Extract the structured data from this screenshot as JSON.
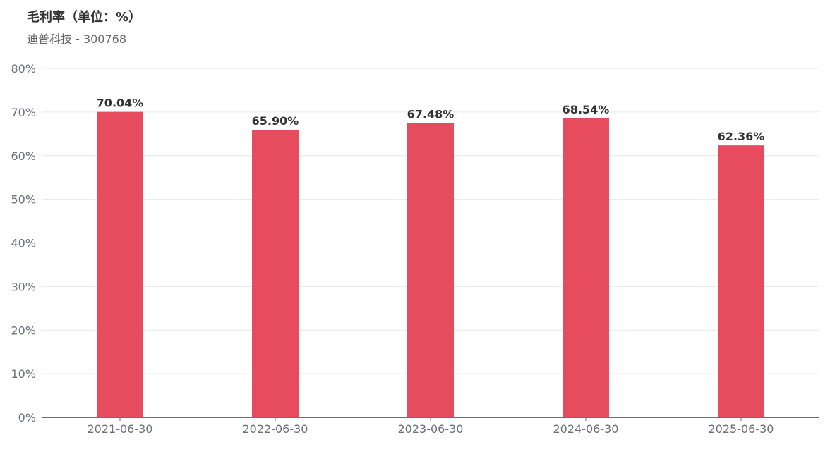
{
  "header": {
    "title": "毛利率（单位：%）",
    "subtitle": "迪普科技 - 300768"
  },
  "colors": {
    "bar": "#e64c5e",
    "grid": "#e6e8f0",
    "axis": "#6e7079",
    "label": "#333333"
  },
  "chart_data": {
    "type": "bar",
    "title": "毛利率（单位：%）",
    "subtitle": "迪普科技 - 300768",
    "categories": [
      "2021-06-30",
      "2022-06-30",
      "2023-06-30",
      "2024-06-30",
      "2025-06-30"
    ],
    "values": [
      70.04,
      65.9,
      67.48,
      68.54,
      62.36
    ],
    "data_labels": [
      "70.04%",
      "65.90%",
      "67.48%",
      "68.54%",
      "62.36%"
    ],
    "y_ticks": [
      "0%",
      "10%",
      "20%",
      "30%",
      "40%",
      "50%",
      "60%",
      "70%",
      "80%"
    ],
    "ylim": [
      0,
      80
    ],
    "y_step": 10,
    "xlabel": "",
    "ylabel": "",
    "grid": true,
    "legend": "none"
  }
}
